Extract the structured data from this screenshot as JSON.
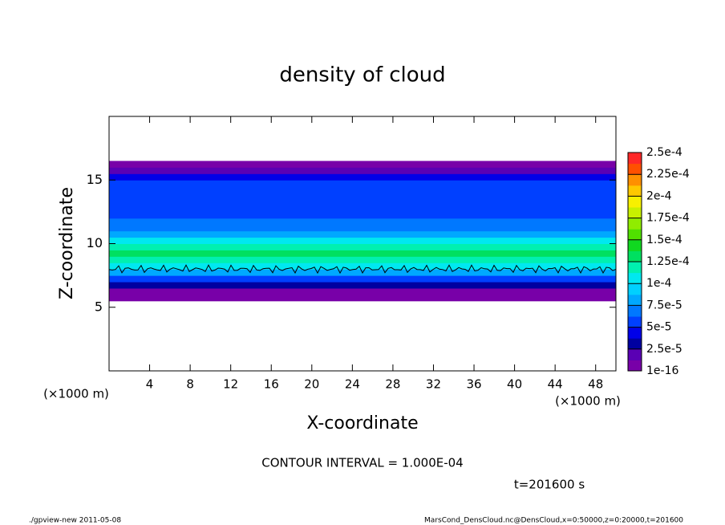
{
  "chart_data": {
    "type": "heatmap",
    "title": "density of cloud",
    "x_label": "X-coordinate",
    "y_label": "Z-coordinate",
    "x_unit": "(×1000 m)",
    "y_unit": "(×1000 m)",
    "xlim": [
      0,
      50
    ],
    "ylim": [
      0,
      20
    ],
    "xticks": [
      4,
      8,
      12,
      16,
      20,
      24,
      28,
      32,
      36,
      40,
      44,
      48
    ],
    "yticks": [
      5,
      10,
      15
    ],
    "z_bins": [
      5.5,
      6.0,
      6.5,
      7.0,
      7.5,
      8.0,
      8.5,
      9.0,
      9.5,
      10.0,
      10.5,
      11.0,
      11.5,
      12.0,
      12.5,
      13.0,
      13.5,
      14.0,
      14.5,
      15.0,
      15.5,
      16.0,
      16.5
    ],
    "values": [
      1e-05,
      1e-05,
      3e-05,
      6e-05,
      8e-05,
      0.00011,
      0.00012,
      0.00013,
      0.00012,
      0.0001,
      8e-05,
      7e-05,
      7e-05,
      6e-05,
      5e-05,
      5e-05,
      5e-05,
      5e-05,
      5e-05,
      4e-05,
      2e-05,
      1e-05
    ],
    "contour_levels": [
      0.0001
    ],
    "contour_interval_label": "CONTOUR INTERVAL = 1.000E-04",
    "time_label": "t=201600 s",
    "colorbar": {
      "ticks": [
        {
          "value": 1e-16,
          "label": "1e-16"
        },
        {
          "value": 2.5e-05,
          "label": "2.5e-5"
        },
        {
          "value": 5e-05,
          "label": "5e-5"
        },
        {
          "value": 7.5e-05,
          "label": "7.5e-5"
        },
        {
          "value": 0.0001,
          "label": "1e-4"
        },
        {
          "value": 0.000125,
          "label": "1.25e-4"
        },
        {
          "value": 0.00015,
          "label": "1.5e-4"
        },
        {
          "value": 0.000175,
          "label": "1.75e-4"
        },
        {
          "value": 0.0002,
          "label": "2e-4"
        },
        {
          "value": 0.000225,
          "label": "2.25e-4"
        },
        {
          "value": 0.00025,
          "label": "2.5e-4"
        }
      ],
      "colors": [
        "#7800a8",
        "#5a00b4",
        "#0000a0",
        "#0000e8",
        "#0040ff",
        "#0078ff",
        "#00a8ff",
        "#00d0ff",
        "#00e8f0",
        "#00f0b0",
        "#00e060",
        "#10d820",
        "#50e000",
        "#90ec00",
        "#c8f000",
        "#f8f000",
        "#ffc800",
        "#ff9000",
        "#ff5000",
        "#ff2828",
        "#ff8c8c"
      ]
    },
    "footer_left": "./gpview-new  2011-05-08",
    "footer_right": "MarsCond_DensCloud.nc@DensCloud,x=0:50000,z=0:20000,t=201600"
  }
}
